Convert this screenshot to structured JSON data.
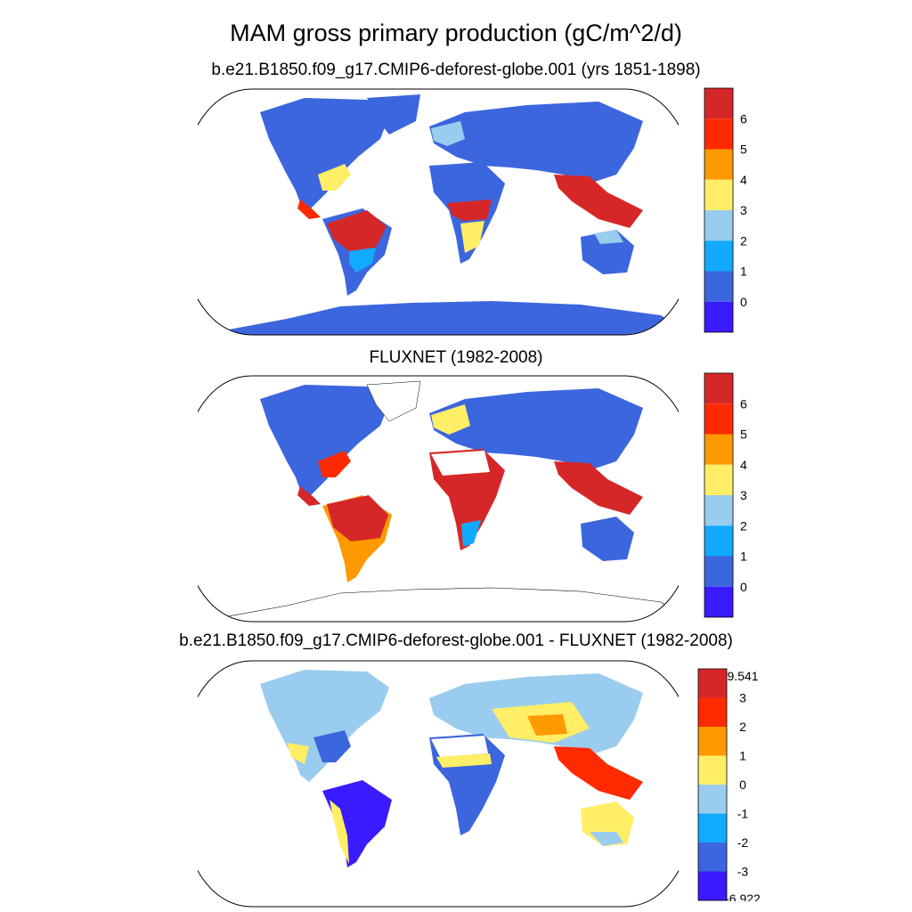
{
  "figure": {
    "title": "MAM gross primary production (gC/m^2/d)"
  },
  "panels": [
    {
      "id": "model",
      "title": "b.e21.B1850.f09_g17.CMIP6-deforest-globe.001 (yrs 1851-1898)",
      "colorbar": {
        "tick_labels": [
          "6",
          "5",
          "4",
          "3",
          "2",
          "1",
          "0"
        ],
        "colors": [
          "#d62728",
          "#ff2a00",
          "#ff9900",
          "#ffee66",
          "#99ccee",
          "#11aaff",
          "#3c66dd",
          "#3a1aff"
        ]
      }
    },
    {
      "id": "obs",
      "title": "FLUXNET (1982-2008)",
      "colorbar": {
        "tick_labels": [
          "6",
          "5",
          "4",
          "3",
          "2",
          "1",
          "0"
        ],
        "colors": [
          "#d62728",
          "#ff2a00",
          "#ff9900",
          "#ffee66",
          "#99ccee",
          "#11aaff",
          "#3c66dd",
          "#3a1aff"
        ]
      }
    },
    {
      "id": "diff",
      "title": "b.e21.B1850.f09_g17.CMIP6-deforest-globe.001 - FLUXNET (1982-2008)",
      "colorbar": {
        "tick_labels": [
          "9.541",
          "3",
          "2",
          "1",
          "0",
          "-1",
          "-2",
          "-3",
          "-6.922"
        ],
        "colors": [
          "#d62728",
          "#ff2a00",
          "#ff9900",
          "#ffee66",
          "#99ccee",
          "#11aaff",
          "#3c66dd",
          "#3a1aff"
        ]
      }
    }
  ]
}
